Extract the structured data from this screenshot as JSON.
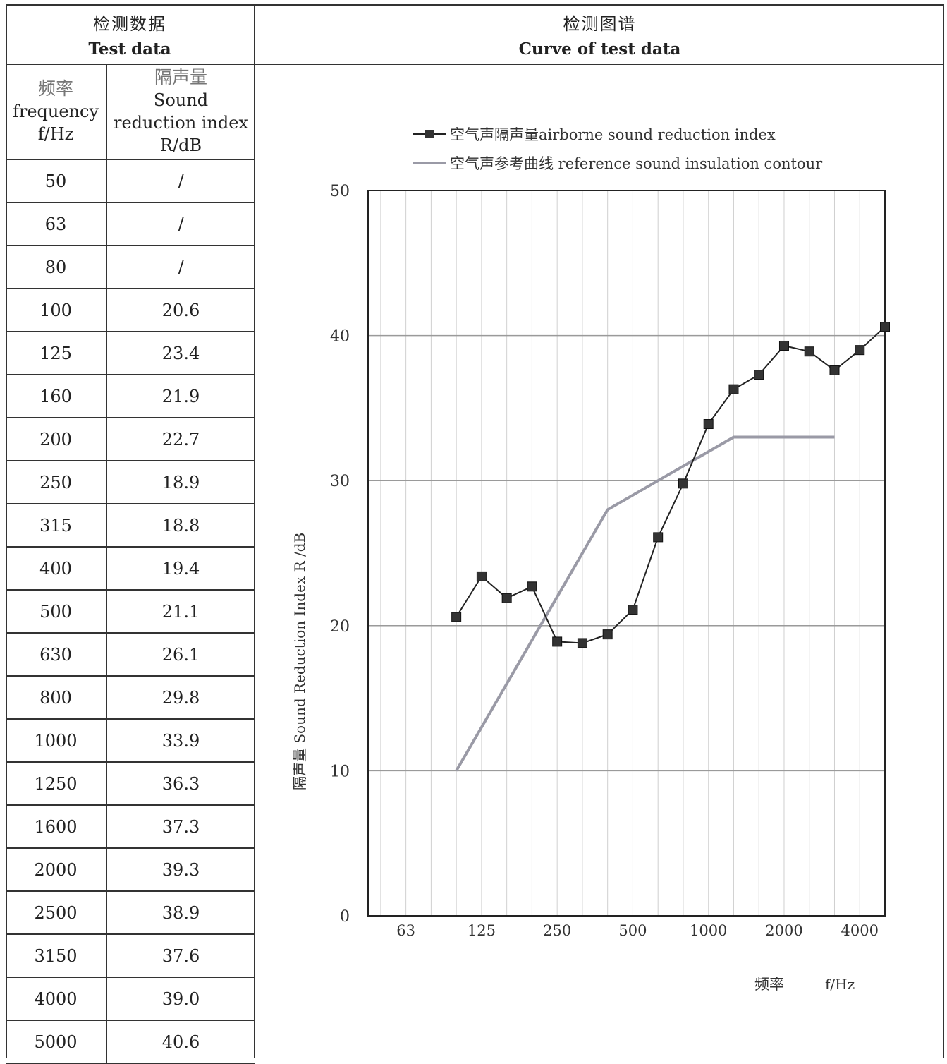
{
  "headers": {
    "left_zh": "检测数据",
    "left_en": "Test data",
    "right_zh": "检测图谱",
    "right_en": "Curve of test data"
  },
  "table": {
    "col1_zh": "频率",
    "col1_en1": "frequency",
    "col1_en2": "f/Hz",
    "col2_zh": "隔声量",
    "col2_en1": "Sound",
    "col2_en2": "reduction index",
    "col2_en3": "R/dB",
    "rows": [
      {
        "f": "50",
        "r": "/"
      },
      {
        "f": "63",
        "r": "/"
      },
      {
        "f": "80",
        "r": "/"
      },
      {
        "f": "100",
        "r": "20.6"
      },
      {
        "f": "125",
        "r": "23.4"
      },
      {
        "f": "160",
        "r": "21.9"
      },
      {
        "f": "200",
        "r": "22.7"
      },
      {
        "f": "250",
        "r": "18.9"
      },
      {
        "f": "315",
        "r": "18.8"
      },
      {
        "f": "400",
        "r": "19.4"
      },
      {
        "f": "500",
        "r": "21.1"
      },
      {
        "f": "630",
        "r": "26.1"
      },
      {
        "f": "800",
        "r": "29.8"
      },
      {
        "f": "1000",
        "r": "33.9"
      },
      {
        "f": "1250",
        "r": "36.3"
      },
      {
        "f": "1600",
        "r": "37.3"
      },
      {
        "f": "2000",
        "r": "39.3"
      },
      {
        "f": "2500",
        "r": "38.9"
      },
      {
        "f": "3150",
        "r": "37.6"
      },
      {
        "f": "4000",
        "r": "39.0"
      },
      {
        "f": "5000",
        "r": "40.6"
      }
    ]
  },
  "chart_data": {
    "type": "line",
    "ylabel": "隔声量 Sound Reduction Index  R /dB",
    "xlabel_zh": "频率",
    "xlabel_unit": "f/Hz",
    "ylim": [
      0,
      50
    ],
    "yticks": [
      0,
      10,
      20,
      30,
      40,
      50
    ],
    "grid": true,
    "x_scale": "log (1/3-octave bands)",
    "x_grid_bands": [
      "50",
      "63",
      "80",
      "100",
      "125",
      "160",
      "200",
      "250",
      "315",
      "400",
      "500",
      "630",
      "800",
      "1000",
      "1250",
      "1600",
      "2000",
      "2500",
      "3150",
      "4000",
      "5000"
    ],
    "xtick_labels": [
      "63",
      "125",
      "250",
      "500",
      "1000",
      "2000",
      "4000"
    ],
    "legend_position": "top",
    "series": [
      {
        "name": "空气声隔声量airborne sound reduction index",
        "color": "#222222",
        "marker": "square",
        "x": [
          100,
          125,
          160,
          200,
          250,
          315,
          400,
          500,
          630,
          800,
          1000,
          1250,
          1600,
          2000,
          2500,
          3150,
          4000,
          5000
        ],
        "values": [
          20.6,
          23.4,
          21.9,
          22.7,
          18.9,
          18.8,
          19.4,
          21.1,
          26.1,
          29.8,
          33.9,
          36.3,
          37.3,
          39.3,
          38.9,
          37.6,
          39.0,
          40.6
        ]
      },
      {
        "name": "空气声参考曲线 reference sound insulation contour",
        "color": "#9a9aa6",
        "marker": "none",
        "x": [
          100,
          125,
          160,
          200,
          250,
          315,
          400,
          500,
          630,
          800,
          1000,
          1250,
          1600,
          2000,
          2500,
          3150
        ],
        "values": [
          10,
          13,
          16,
          19,
          22,
          25,
          28,
          29,
          30,
          31,
          32,
          33,
          33,
          33,
          33,
          33
        ]
      }
    ]
  }
}
